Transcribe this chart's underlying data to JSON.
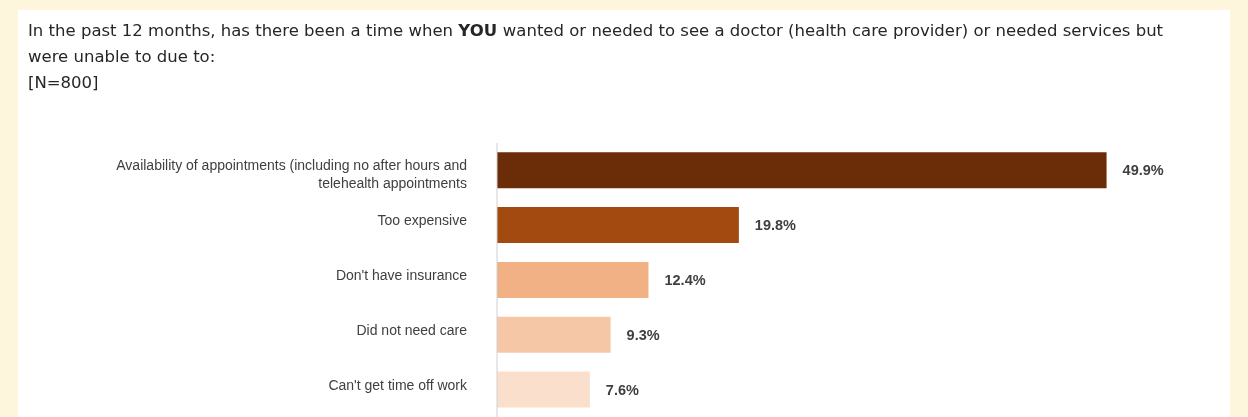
{
  "chart_data": {
    "type": "bar",
    "orientation": "horizontal",
    "title": "In the past 12 months, has there been a time when YOU wanted or needed to see a doctor (health care provider) or needed services but were unable to due to:",
    "subtitle": "[N=800]",
    "categories": [
      "Availability of appointments (including no after hours and telehealth appointments",
      "Too expensive",
      "Don't have insurance",
      "Did not need care",
      "Can't get time off work"
    ],
    "values": [
      49.9,
      19.8,
      12.4,
      9.3,
      7.6
    ],
    "colors": [
      "#6b2d08",
      "#a34a10",
      "#f2b185",
      "#f6c7a6",
      "#fadfcd"
    ],
    "value_labels": [
      "49.9%",
      "19.8%",
      "12.4%",
      "9.3%",
      "7.6%"
    ]
  }
}
